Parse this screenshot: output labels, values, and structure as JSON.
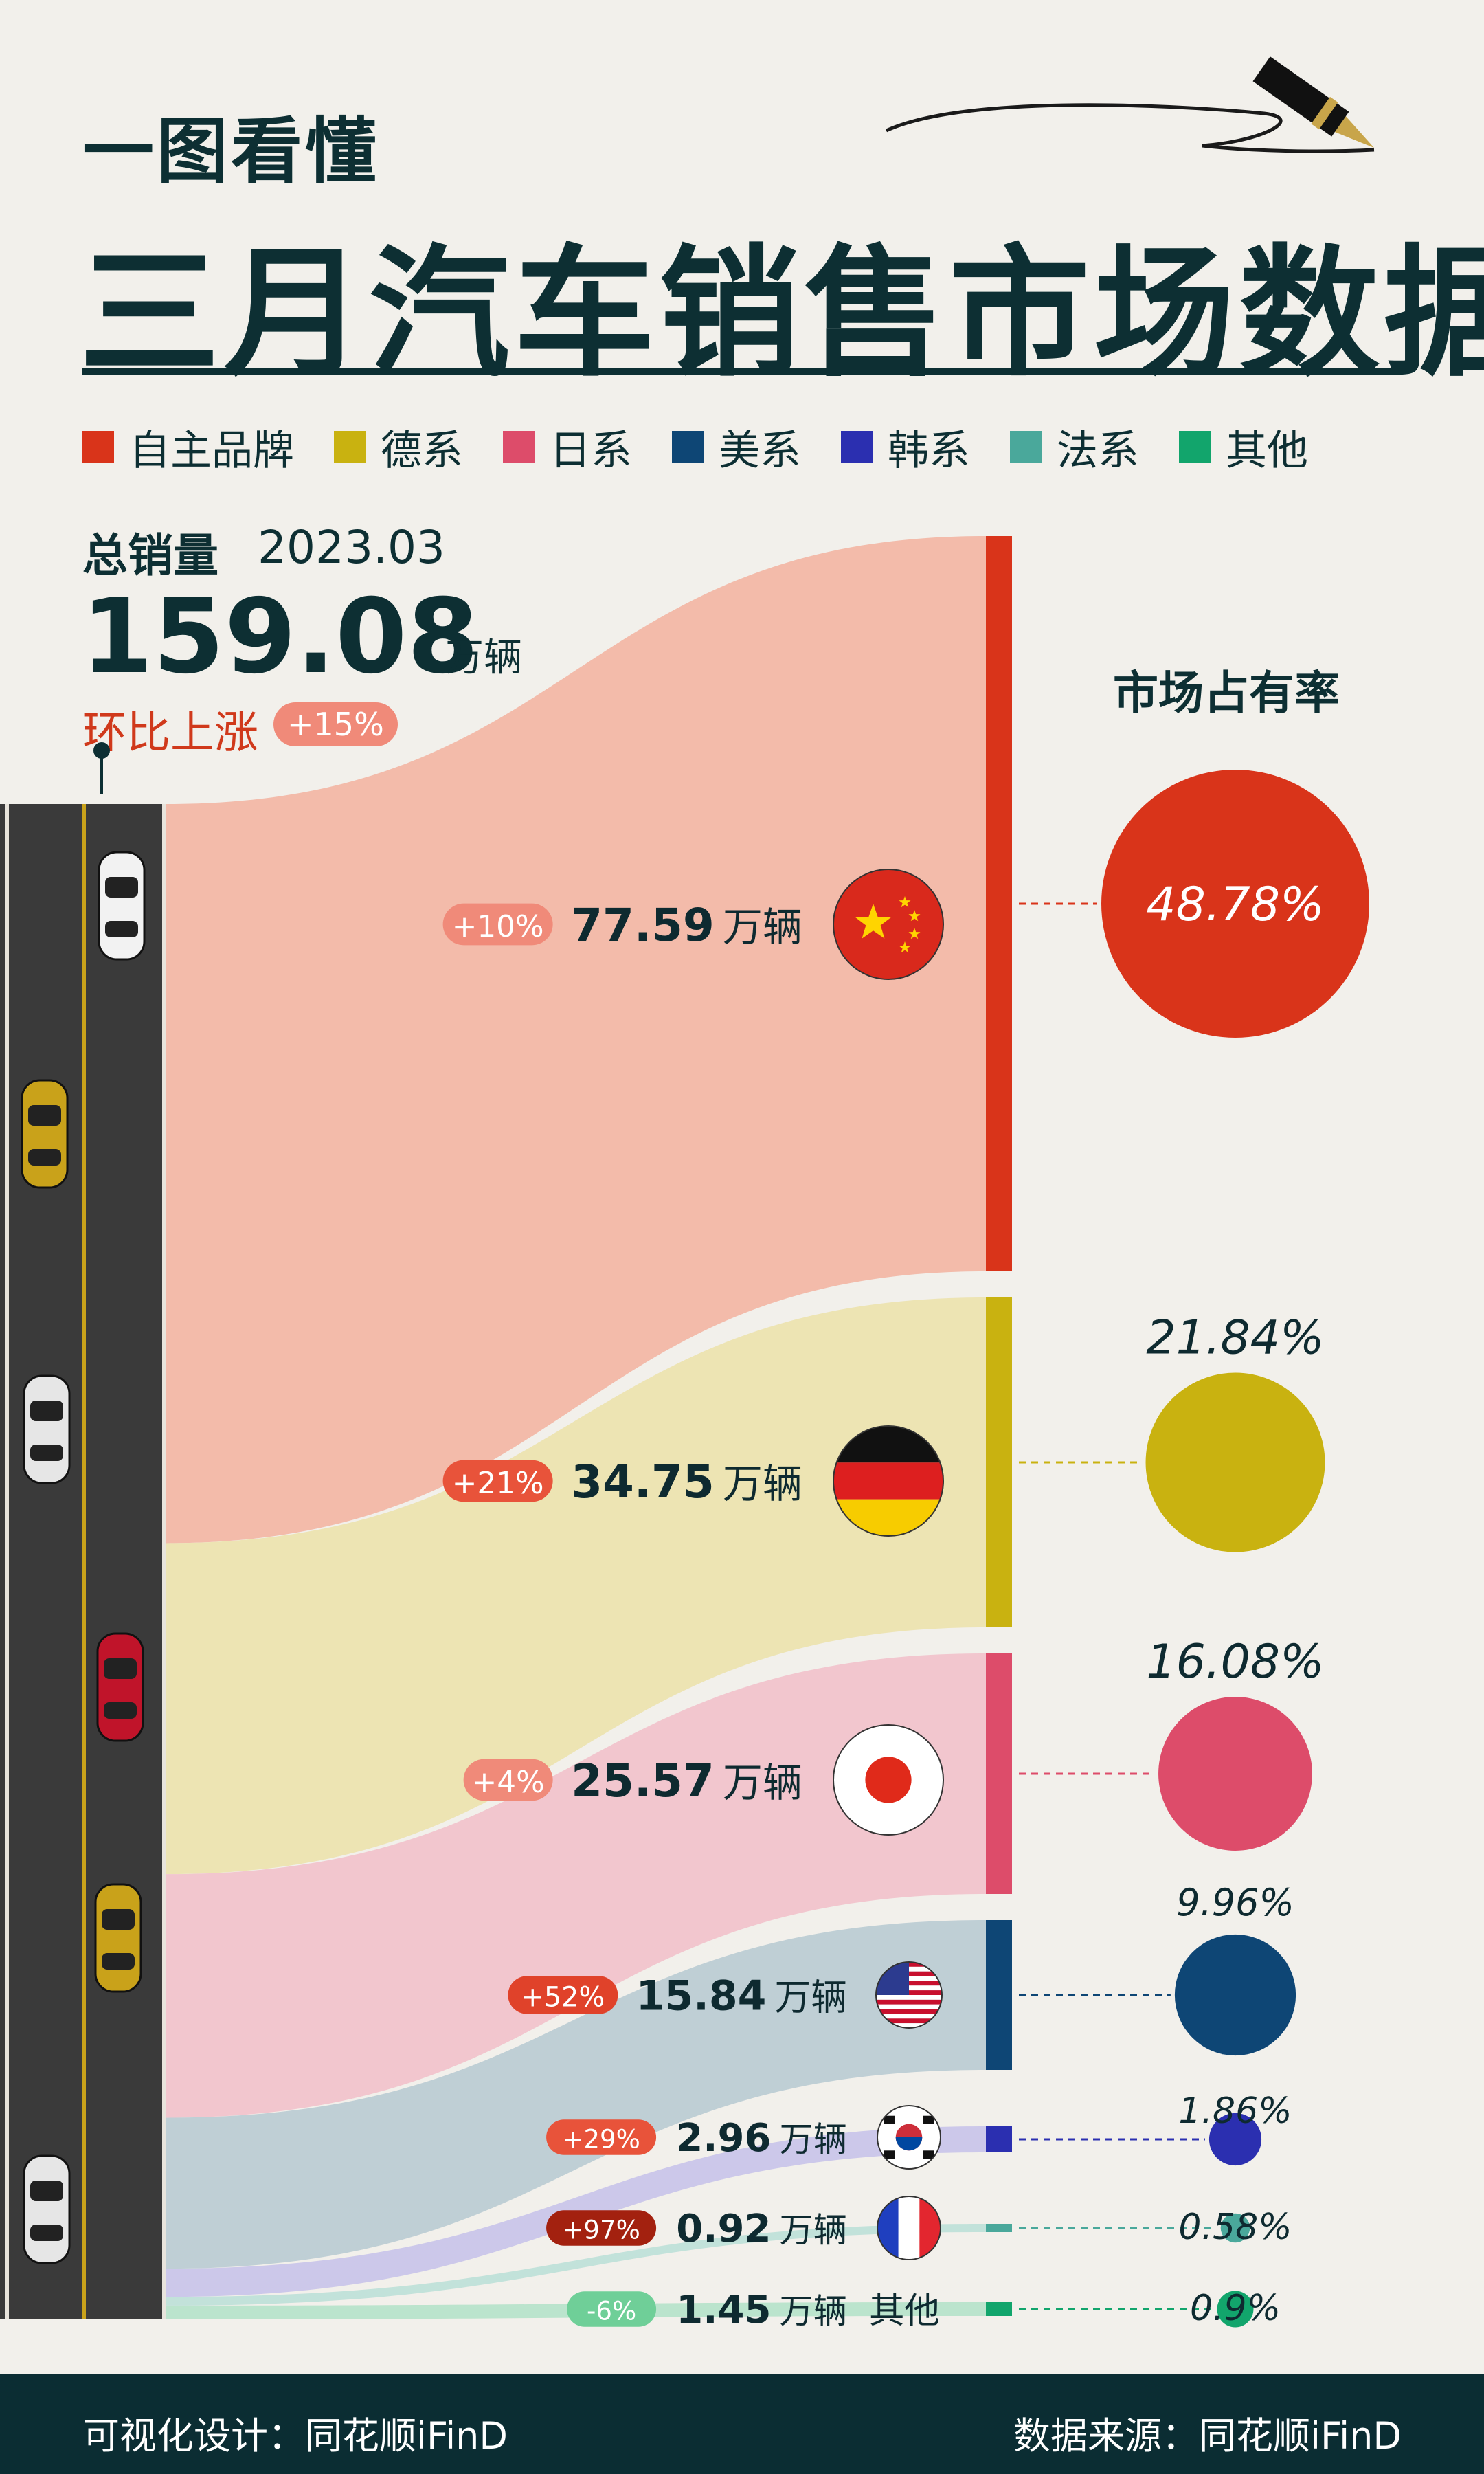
{
  "header": {
    "subtitle": "一图看懂",
    "title": "三月汽车销售市场数据"
  },
  "legend": [
    {
      "label": "自主品牌",
      "color": "#d9341a"
    },
    {
      "label": "德系",
      "color": "#c9b210"
    },
    {
      "label": "日系",
      "color": "#dd4c6a"
    },
    {
      "label": "美系",
      "color": "#0e4675"
    },
    {
      "label": "韩系",
      "color": "#2b2fb0"
    },
    {
      "label": "法系",
      "color": "#4aa89b"
    },
    {
      "label": "其他",
      "color": "#12a56c"
    }
  ],
  "total": {
    "label": "总销量",
    "date": "2023.03",
    "value": "159.08",
    "unit": "万辆",
    "mom_label": "环比上涨",
    "mom_change": "+15%"
  },
  "share_title": "市场占有率",
  "chart_data": {
    "type": "sankey",
    "unit": "万辆",
    "series": [
      {
        "name": "自主品牌",
        "value": 77.59,
        "value_label": "77.59",
        "change": "+10%",
        "share": "48.78%",
        "share_value": 48.78,
        "flag": "china-flag-icon",
        "color": "#d9341a",
        "flow_color": "#f2b7a7",
        "pill_color": "#f08a79"
      },
      {
        "name": "德系",
        "value": 34.75,
        "value_label": "34.75",
        "change": "+21%",
        "share": "21.84%",
        "share_value": 21.84,
        "flag": "germany-flag-icon",
        "color": "#c9b210",
        "flow_color": "#ece3b0",
        "pill_color": "#e8533a"
      },
      {
        "name": "日系",
        "value": 25.57,
        "value_label": "25.57",
        "change": "+4%",
        "share": "16.08%",
        "share_value": 16.08,
        "flag": "japan-flag-icon",
        "color": "#dd4c6a",
        "flow_color": "#f1c3cc",
        "pill_color": "#f08a79"
      },
      {
        "name": "美系",
        "value": 15.84,
        "value_label": "15.84",
        "change": "+52%",
        "share": "9.96%",
        "share_value": 9.96,
        "flag": "usa-flag-icon",
        "color": "#0e4675",
        "flow_color": "#bcccd4",
        "pill_color": "#e0422a"
      },
      {
        "name": "韩系",
        "value": 2.96,
        "value_label": "2.96",
        "change": "+29%",
        "share": "1.86%",
        "share_value": 1.86,
        "flag": "korea-flag-icon",
        "color": "#2b2fb0",
        "flow_color": "#c9c5ea",
        "pill_color": "#e8533a"
      },
      {
        "name": "法系",
        "value": 0.92,
        "value_label": "0.92",
        "change": "+97%",
        "share": "0.58%",
        "share_value": 0.58,
        "flag": "france-flag-icon",
        "color": "#4aa89b",
        "flow_color": "#bfe0d9",
        "pill_color": "#a3210f"
      },
      {
        "name": "其他",
        "value": 1.45,
        "value_label": "1.45",
        "change": "-6%",
        "share": "0.9%",
        "share_value": 0.9,
        "flag": "",
        "label_suffix": "其他",
        "color": "#12a56c",
        "flow_color": "#b7e3cb",
        "pill_color": "#6fcf98"
      }
    ]
  },
  "footer": {
    "left": "可视化设计：同花顺iFinD",
    "right": "数据来源：同花顺iFinD"
  }
}
